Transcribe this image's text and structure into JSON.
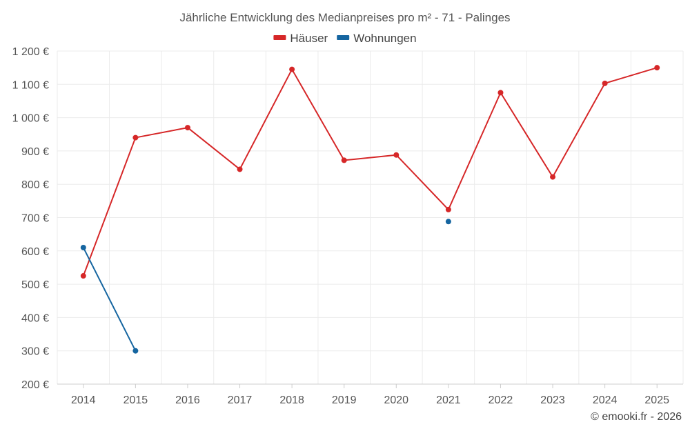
{
  "chart_data": {
    "type": "line",
    "title": "Jährliche Entwicklung des Medianpreises pro m² - 71 - Palinges",
    "categories": [
      "2014",
      "2015",
      "2016",
      "2017",
      "2018",
      "2019",
      "2020",
      "2021",
      "2022",
      "2023",
      "2024",
      "2025"
    ],
    "ylim": [
      200,
      1200
    ],
    "yticks": [
      200,
      300,
      400,
      500,
      600,
      700,
      800,
      900,
      1000,
      1100,
      1200
    ],
    "ytick_labels": [
      "200 €",
      "300 €",
      "400 €",
      "500 €",
      "600 €",
      "700 €",
      "800 €",
      "900 €",
      "1 000 €",
      "1 100 €",
      "1 200 €"
    ],
    "grid": true,
    "legend_position": "top-center",
    "series": [
      {
        "name": "Häuser",
        "color": "#d62728",
        "values": [
          525,
          940,
          970,
          845,
          1145,
          872,
          888,
          724,
          1075,
          822,
          1103,
          1150
        ]
      },
      {
        "name": "Wohnungen",
        "color": "#1565a0",
        "values": [
          610,
          300,
          null,
          null,
          null,
          null,
          null,
          688,
          null,
          null,
          null,
          null
        ]
      }
    ]
  },
  "credit": "© emooki.fr - 2026"
}
